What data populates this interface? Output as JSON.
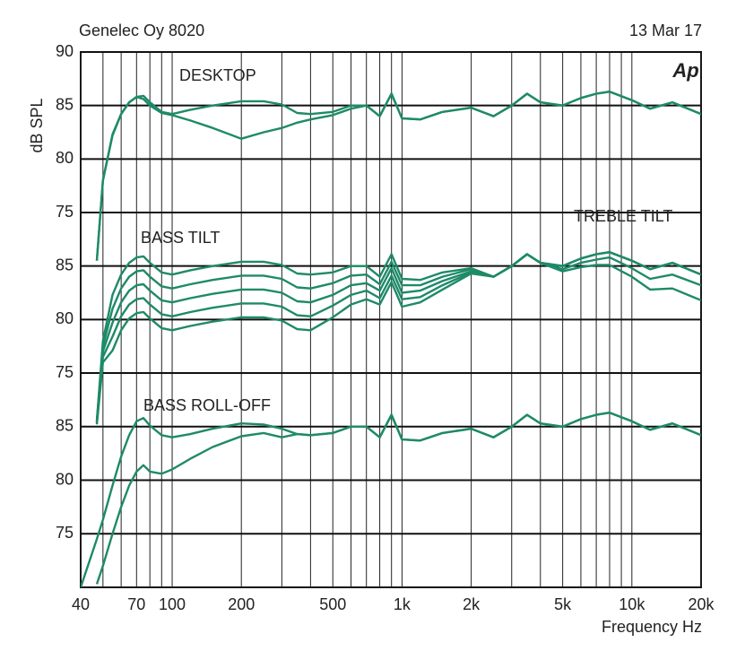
{
  "chart_data": [
    {
      "type": "line",
      "title": "Genelec Oy 8020",
      "date": "13 Mar 17",
      "logo": "Ap",
      "ylabel": "dB SPL",
      "annotations": [
        "DESKTOP"
      ],
      "color": "#1e8a68",
      "ylim": [
        75,
        90
      ],
      "yticks": [
        75,
        80,
        85,
        90
      ],
      "x": [
        47,
        50,
        55,
        60,
        65,
        70,
        75,
        80,
        90,
        100,
        120,
        150,
        200,
        250,
        300,
        350,
        400,
        500,
        600,
        700,
        800,
        900,
        1000,
        1200,
        1500,
        2000,
        2500,
        3000,
        3500,
        4000,
        5000,
        6000,
        7000,
        8000,
        10000,
        12000,
        15000,
        20000
      ],
      "series": [
        {
          "values": [
            70.5,
            78,
            82.3,
            84.2,
            85.3,
            85.8,
            85.9,
            85.3,
            84.4,
            84.2,
            84.6,
            85,
            85.4,
            85.4,
            85.1,
            84.3,
            84.2,
            84.4,
            85,
            85,
            84,
            86.1,
            83.8,
            83.7,
            84.4,
            84.8,
            84,
            85,
            86.1,
            85.3,
            85,
            85.7,
            86.1,
            86.3,
            85.5,
            84.7,
            85.3,
            84.2
          ]
        },
        {
          "values": [
            70.5,
            78,
            82.2,
            84.2,
            85.3,
            85.8,
            85.6,
            85,
            84.3,
            84.1,
            83.6,
            82.9,
            81.9,
            82.5,
            82.9,
            83.4,
            83.7,
            84.1,
            84.7,
            85,
            84,
            86.1,
            83.8,
            83.7,
            84.4,
            84.8,
            84,
            85,
            86.1,
            85.3,
            85,
            85.7,
            86.1,
            86.3,
            85.5,
            84.7,
            85.3,
            84.2
          ]
        }
      ]
    },
    {
      "type": "line",
      "annotations": [
        "BASS TILT",
        "TREBLE TILT"
      ],
      "color": "#1e8a68",
      "ylim": [
        75,
        90
      ],
      "yticks": [
        75,
        80,
        85
      ],
      "x": [
        47,
        50,
        55,
        60,
        65,
        70,
        75,
        80,
        90,
        100,
        120,
        150,
        200,
        250,
        300,
        350,
        400,
        500,
        600,
        700,
        800,
        900,
        1000,
        1200,
        1500,
        2000,
        2500,
        3000,
        3500,
        4000,
        5000,
        6000,
        7000,
        8000,
        10000,
        12000,
        15000,
        20000
      ],
      "series": [
        {
          "values": [
            70.5,
            78,
            82.3,
            84.2,
            85.3,
            85.8,
            85.9,
            85.3,
            84.4,
            84.2,
            84.6,
            85,
            85.4,
            85.4,
            85.1,
            84.3,
            84.2,
            84.4,
            85,
            85,
            84,
            86.1,
            83.8,
            83.7,
            84.4,
            84.8,
            84,
            85,
            86.1,
            85.3,
            85,
            85.7,
            86.1,
            86.3,
            85.5,
            84.7,
            85.3,
            84.2
          ]
        },
        {
          "values": [
            70.5,
            77.5,
            81,
            82.9,
            84,
            84.5,
            84.6,
            84,
            83.1,
            82.9,
            83.3,
            83.7,
            84.1,
            84.1,
            83.8,
            83,
            82.9,
            83.4,
            84.1,
            84.2,
            83.3,
            85.4,
            83.2,
            83.2,
            84,
            84.7,
            84,
            85,
            86.1,
            85.3,
            85,
            85.7,
            86.1,
            86.3,
            85.5,
            84.7,
            85.3,
            84.2
          ]
        },
        {
          "values": [
            70.4,
            77,
            79.7,
            81.6,
            82.7,
            83.2,
            83.3,
            82.7,
            81.8,
            81.6,
            82,
            82.4,
            82.8,
            82.8,
            82.5,
            81.7,
            81.6,
            82.3,
            83.2,
            83.4,
            82.7,
            84.8,
            82.5,
            82.7,
            83.6,
            84.5,
            84,
            85,
            86.1,
            85.3,
            84.7,
            85.3,
            85.6,
            85.8,
            84.8,
            83.8,
            84.2,
            83.2
          ]
        },
        {
          "values": [
            70.3,
            76.5,
            78.4,
            80.3,
            81.4,
            81.9,
            82,
            81.4,
            80.5,
            80.3,
            80.7,
            81.1,
            81.5,
            81.5,
            81.2,
            80.4,
            80.3,
            81.3,
            82.3,
            82.7,
            82,
            84.1,
            81.9,
            82.1,
            83.2,
            84.4,
            84,
            85,
            86.1,
            85.3,
            84.5,
            84.9,
            85.1,
            85.1,
            84,
            82.8,
            82.9,
            81.8
          ]
        },
        {
          "values": [
            70.2,
            76,
            77.1,
            79,
            80.1,
            80.6,
            80.7,
            80.1,
            79.2,
            79,
            79.4,
            79.8,
            80.2,
            80.2,
            79.9,
            79.1,
            79,
            80.2,
            81.4,
            81.9,
            81.4,
            83.5,
            81.2,
            81.6,
            82.8,
            84.3,
            84,
            85,
            86.1,
            85.3,
            85,
            85.7,
            86.1,
            86.3,
            85.5,
            84.7,
            85.3,
            84.2
          ]
        }
      ]
    },
    {
      "type": "line",
      "annotations": [
        "BASS ROLL-OFF"
      ],
      "color": "#1e8a68",
      "xlabel": "Frequency Hz",
      "ylim": [
        70,
        90
      ],
      "yticks": [
        75,
        80,
        85
      ],
      "xlim": [
        40,
        20000
      ],
      "log_x": true,
      "xticks": [
        40,
        70,
        100,
        200,
        500,
        {
          "value": 1000,
          "label": "1k"
        },
        {
          "value": 2000,
          "label": "2k"
        },
        {
          "value": 5000,
          "label": "5k"
        },
        {
          "value": 10000,
          "label": "10k"
        },
        {
          "value": 20000,
          "label": "20k"
        }
      ],
      "minor_xticks": [
        50,
        60,
        80,
        90,
        300,
        400,
        600,
        700,
        800,
        900,
        3000,
        4000,
        6000,
        7000,
        8000,
        9000
      ],
      "x": [
        40,
        47,
        50,
        55,
        60,
        65,
        70,
        75,
        80,
        90,
        100,
        120,
        150,
        200,
        250,
        300,
        350,
        400,
        500,
        600,
        700,
        800,
        900,
        1000,
        1200,
        1500,
        2000,
        2500,
        3000,
        3500,
        4000,
        5000,
        6000,
        7000,
        8000,
        10000,
        12000,
        15000,
        20000
      ],
      "series": [
        {
          "values": [
            70,
            74.5,
            76.3,
            79.5,
            82.2,
            84.2,
            85.5,
            85.8,
            85.1,
            84.2,
            84,
            84.3,
            84.8,
            85.3,
            85.2,
            84.8,
            84.3,
            84.2,
            84.4,
            85,
            85,
            84,
            86.1,
            83.8,
            83.7,
            84.4,
            84.8,
            84,
            85,
            86.1,
            85.3,
            85,
            85.7,
            86.1,
            86.3,
            85.5,
            84.7,
            85.3,
            84.2
          ]
        },
        {
          "values": [
            null,
            70.3,
            72,
            75,
            77.5,
            79.5,
            80.8,
            81.4,
            80.8,
            80.6,
            81,
            82,
            83.1,
            84.1,
            84.4,
            84,
            84.3,
            84.2,
            84.4,
            85,
            85,
            84,
            86.1,
            83.8,
            83.7,
            84.4,
            84.8,
            84,
            85,
            86.1,
            85.3,
            85,
            85.7,
            86.1,
            86.3,
            85.5,
            84.7,
            85.3,
            84.2
          ]
        }
      ]
    }
  ]
}
